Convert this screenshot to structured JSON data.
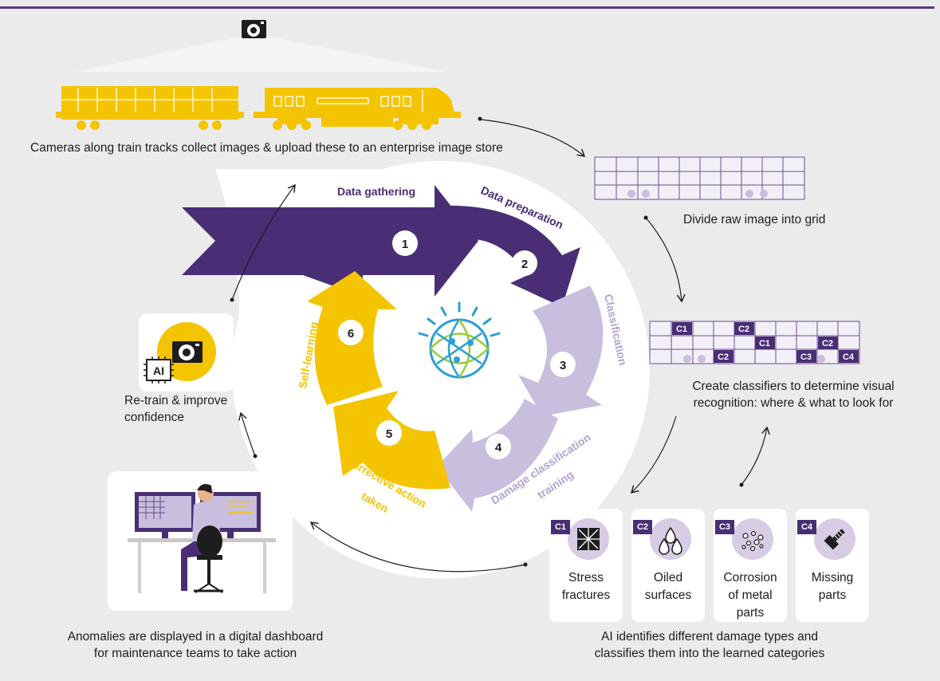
{
  "captions": {
    "cameras": "Cameras along train tracks collect images & upload these to an enterprise image store",
    "grid": "Divide raw image into grid",
    "classifiers_line1": "Create classifiers to determine visual",
    "classifiers_line2": "recognition: where & what to look for",
    "retrain_line1": "Re-train & improve",
    "retrain_line2": "confidence",
    "dashboard_line1": "Anomalies are displayed in a digital dashboard",
    "dashboard_line2": "for maintenance teams to take action",
    "identify_line1": "AI identifies different damage types and",
    "identify_line2": "classifies them into the learned categories"
  },
  "steps": [
    {
      "number": "1",
      "label": "Data gathering"
    },
    {
      "number": "2",
      "label": "Data preparation"
    },
    {
      "number": "3",
      "label": "Classification"
    },
    {
      "number": "4",
      "label": "Damage classification",
      "label2": "training"
    },
    {
      "number": "5",
      "label": "Corrective action",
      "label2": "taken"
    },
    {
      "number": "6",
      "label": "Self-learning"
    }
  ],
  "classifier_tags": [
    "C1",
    "C2",
    "C1",
    "C2",
    "C2",
    "C3",
    "C4"
  ],
  "ai_badge": "AI",
  "damage_types": [
    {
      "code": "C1",
      "label1": "Stress",
      "label2": "fractures",
      "label3": "",
      "icon": "stress-fracture-icon"
    },
    {
      "code": "C2",
      "label1": "Oiled",
      "label2": "surfaces",
      "label3": "",
      "icon": "oil-drops-icon"
    },
    {
      "code": "C3",
      "label1": "Corrosion",
      "label2": "of metal",
      "label3": "parts",
      "icon": "corrosion-icon"
    },
    {
      "code": "C4",
      "label1": "Missing",
      "label2": "parts",
      "label3": "",
      "icon": "bolt-icon"
    }
  ],
  "colors": {
    "purple_dark": "#4a2e75",
    "purple_light": "#c9bedd",
    "yellow": "#f5c400",
    "background": "#ebebec",
    "watson_blue": "#2a9fd6"
  }
}
